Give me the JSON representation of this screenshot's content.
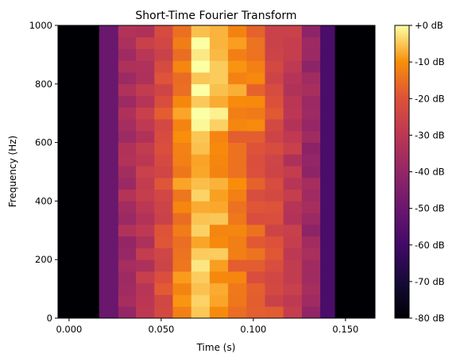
{
  "chart_data": {
    "type": "heatmap",
    "title": "Short-Time Fourier Transform",
    "xlabel": "Time (s)",
    "ylabel": "Frequency (Hz)",
    "xlim": [
      -0.006,
      0.166
    ],
    "ylim": [
      0,
      1000
    ],
    "x_ticks": [
      0.0,
      0.05,
      0.1,
      0.15
    ],
    "x_tick_labels": [
      "0.000",
      "0.050",
      "0.100",
      "0.150"
    ],
    "y_ticks": [
      0,
      200,
      400,
      600,
      800,
      1000
    ],
    "y_tick_labels": [
      "0",
      "200",
      "400",
      "600",
      "800",
      "1000"
    ],
    "time_edges": [
      -0.006,
      0.0163,
      0.0267,
      0.0363,
      0.0463,
      0.0563,
      0.0663,
      0.0763,
      0.0863,
      0.0963,
      0.1063,
      0.1163,
      0.1263,
      0.1363,
      0.1443,
      0.166
    ],
    "freq_bin_hz": 40,
    "colorbar": {
      "min": -80,
      "max": 0,
      "ticks": [
        0,
        -10,
        -20,
        -30,
        -40,
        -50,
        -60,
        -70,
        -80
      ],
      "tick_labels": [
        "+0 dB",
        "-10 dB",
        "-20 dB",
        "-30 dB",
        "-40 dB",
        "-50 dB",
        "-60 dB",
        "-70 dB",
        "-80 dB"
      ],
      "colormap": "inferno"
    },
    "column_levels_db": [
      -80,
      -50,
      -36,
      -30,
      -22,
      -12,
      -6,
      -8,
      -14,
      -18,
      -22,
      -30,
      -38,
      -58,
      -80
    ]
  }
}
